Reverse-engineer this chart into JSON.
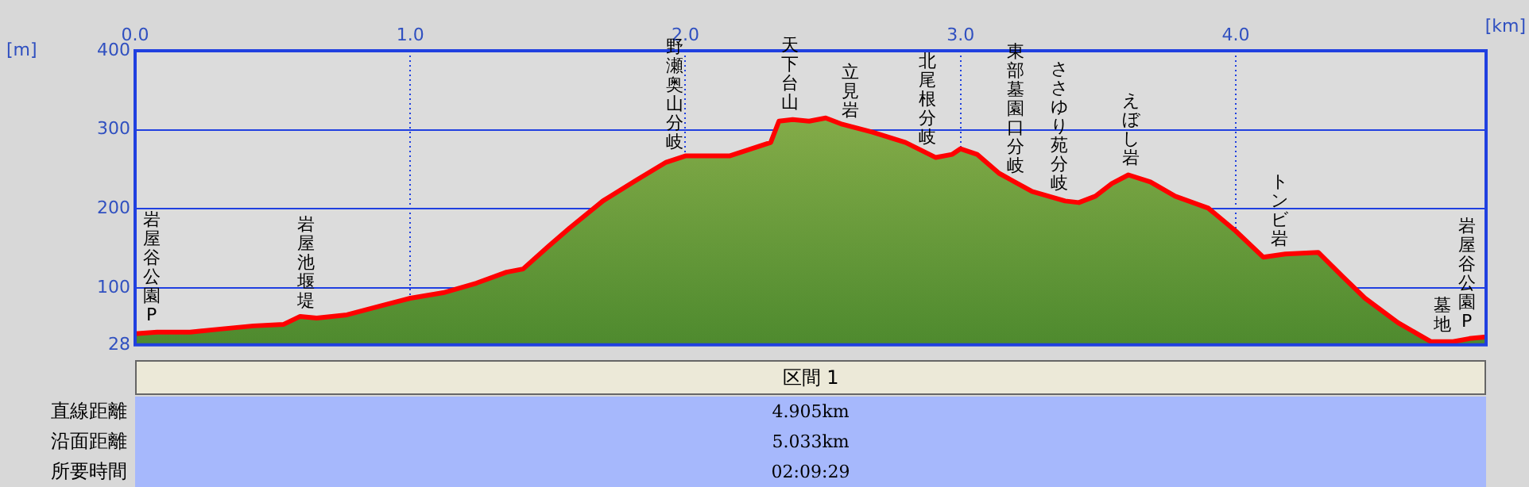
{
  "chart_data": {
    "type": "area",
    "xlabel": "[km]",
    "ylabel": "[m]",
    "x": [
      0,
      0.08,
      0.2,
      0.31,
      0.43,
      0.54,
      0.6,
      0.66,
      0.77,
      0.89,
      1.0,
      1.12,
      1.24,
      1.35,
      1.41,
      1.5,
      1.58,
      1.7,
      1.82,
      1.93,
      2.0,
      2.16,
      2.31,
      2.34,
      2.39,
      2.45,
      2.51,
      2.57,
      2.68,
      2.8,
      2.91,
      2.97,
      3.0,
      3.06,
      3.14,
      3.26,
      3.38,
      3.43,
      3.49,
      3.55,
      3.61,
      3.69,
      3.78,
      3.9,
      4.0,
      4.1,
      4.18,
      4.3,
      4.39,
      4.47,
      4.59,
      4.71,
      4.79,
      4.85,
      4.91
    ],
    "series": [
      {
        "color": "#ff0000",
        "values": [
          42,
          44,
          44,
          48,
          52,
          54,
          64,
          62,
          66,
          77,
          87,
          94,
          106,
          120,
          124,
          152,
          176,
          210,
          236,
          259,
          267,
          267,
          284,
          311,
          313,
          311,
          315,
          307,
          297,
          284,
          265,
          269,
          276,
          269,
          245,
          222,
          210,
          208,
          216,
          232,
          243,
          234,
          216,
          201,
          172,
          139,
          143,
          145,
          114,
          87,
          56,
          32,
          32,
          36,
          38
        ]
      }
    ],
    "xlim": [
      0,
      4.91
    ],
    "ylim": [
      28,
      400
    ],
    "xticks": [
      {
        "value": 0,
        "label": "0.0"
      },
      {
        "value": 1,
        "label": "1.0"
      },
      {
        "value": 2,
        "label": "2.0"
      },
      {
        "value": 3,
        "label": "3.0"
      },
      {
        "value": 4,
        "label": "4.0"
      }
    ],
    "yticks": [
      28,
      100,
      200,
      300,
      400
    ],
    "grid": true,
    "annotations": [
      {
        "text": "岩屋谷公園P",
        "x": 0.06,
        "y": 44
      },
      {
        "text": "岩屋池堰堤",
        "x": 0.62,
        "y": 63
      },
      {
        "text": "野瀬奥山分岐",
        "x": 1.96,
        "y": 264
      },
      {
        "text": "天下台山",
        "x": 2.38,
        "y": 313
      },
      {
        "text": "立見岩",
        "x": 2.6,
        "y": 303
      },
      {
        "text": "北尾根分岐",
        "x": 2.88,
        "y": 270
      },
      {
        "text": "東部墓園口分岐",
        "x": 3.2,
        "y": 234
      },
      {
        "text": "ささゆり苑分岐",
        "x": 3.36,
        "y": 211
      },
      {
        "text": "えぼし岩",
        "x": 3.62,
        "y": 243
      },
      {
        "text": "トンビ岩",
        "x": 4.16,
        "y": 142
      },
      {
        "text": "墓地",
        "x": 4.75,
        "y": 32
      },
      {
        "text": "岩屋谷公園P",
        "x": 4.84,
        "y": 36
      },
      "区間 1",
      "直線距離",
      "4.905km",
      "沿面距離",
      "5.033km",
      "所要時間",
      "02:09:29"
    ]
  }
}
